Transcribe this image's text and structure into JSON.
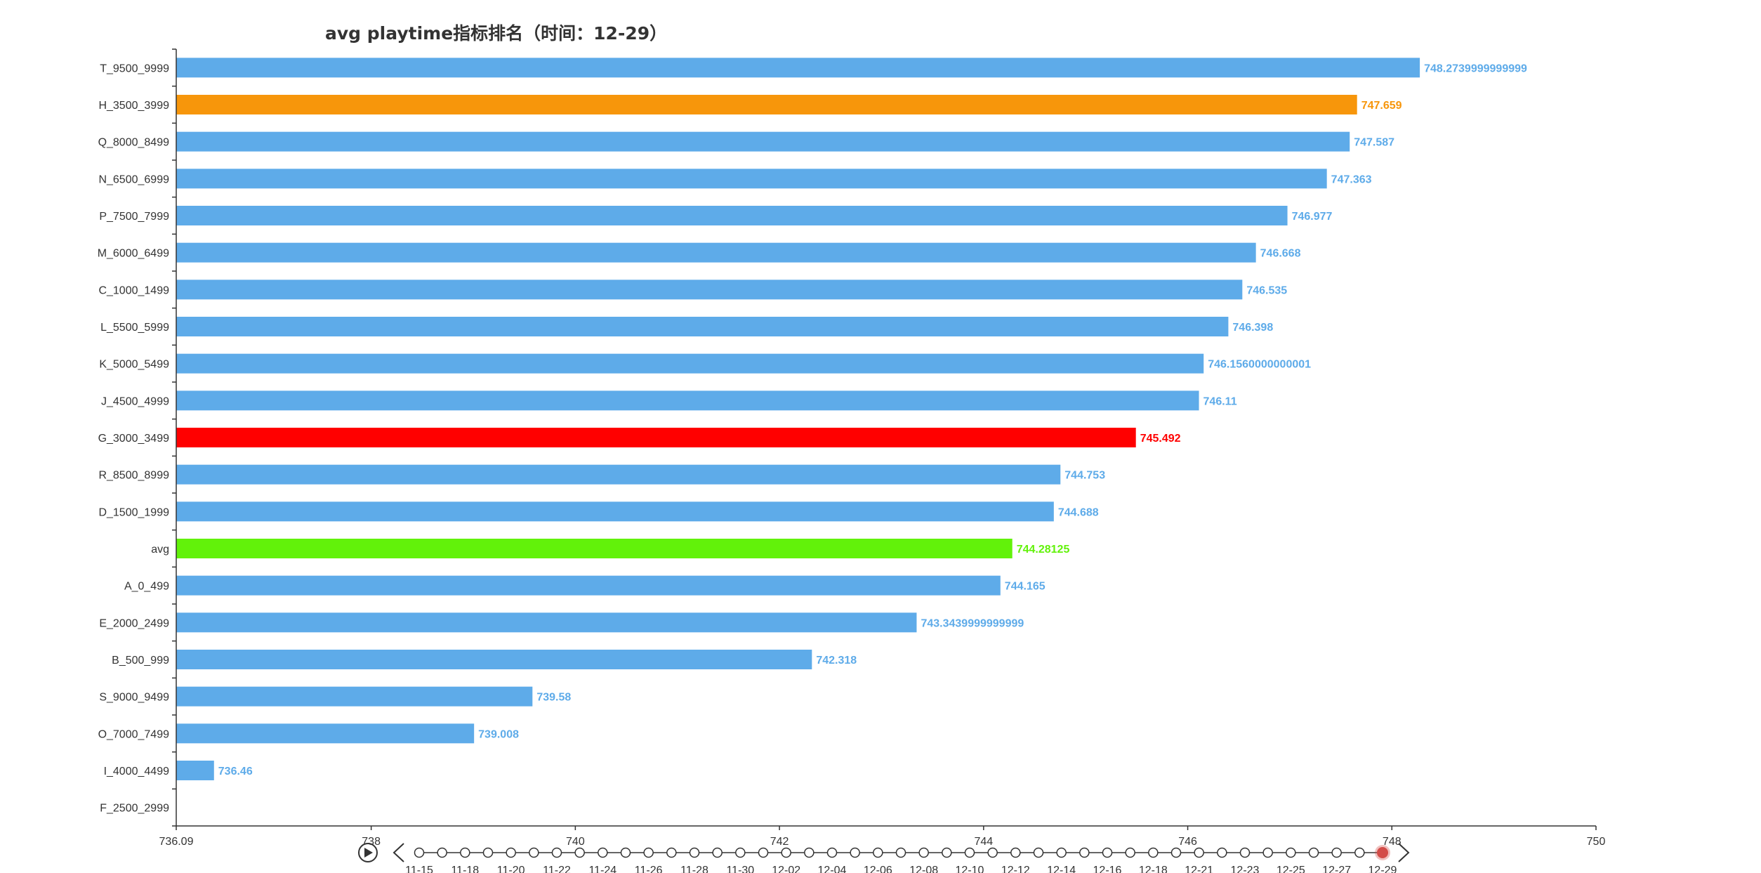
{
  "chart_data": {
    "type": "bar",
    "orientation": "horizontal",
    "title": "avg playtime指标排名（时间：12-29）",
    "categories": [
      "T_9500_9999",
      "H_3500_3999",
      "Q_8000_8499",
      "N_6500_6999",
      "P_7500_7999",
      "M_6000_6499",
      "C_1000_1499",
      "L_5500_5999",
      "K_5000_5499",
      "J_4500_4999",
      "G_3000_3499",
      "R_8500_8999",
      "D_1500_1999",
      "avg",
      "A_0_499",
      "E_2000_2499",
      "B_500_999",
      "S_9000_9499",
      "O_7000_7499",
      "I_4000_4499",
      "F_2500_2999"
    ],
    "values": [
      748.2739999999999,
      747.659,
      747.587,
      747.363,
      746.977,
      746.668,
      746.535,
      746.398,
      746.1560000000001,
      746.11,
      745.492,
      744.753,
      744.688,
      744.28125,
      744.165,
      743.3439999999999,
      742.318,
      739.58,
      739.008,
      736.46,
      null
    ],
    "value_labels": [
      "748.2739999999999",
      "747.659",
      "747.587",
      "747.363",
      "746.977",
      "746.668",
      "746.535",
      "746.398",
      "746.1560000000001",
      "746.11",
      "745.492",
      "744.753",
      "744.688",
      "744.28125",
      "744.165",
      "743.3439999999999",
      "742.318",
      "739.58",
      "739.008",
      "736.46",
      ""
    ],
    "colors": [
      "#5eabe9",
      "#f7960b",
      "#5eabe9",
      "#5eabe9",
      "#5eabe9",
      "#5eabe9",
      "#5eabe9",
      "#5eabe9",
      "#5eabe9",
      "#5eabe9",
      "#ff0000",
      "#5eabe9",
      "#5eabe9",
      "#62f20a",
      "#5eabe9",
      "#5eabe9",
      "#5eabe9",
      "#5eabe9",
      "#5eabe9",
      "#5eabe9",
      "#5eabe9"
    ],
    "xlim": [
      736.09,
      750
    ],
    "x_ticks": [
      736.09,
      738,
      740,
      742,
      744,
      746,
      748,
      750
    ],
    "x_tick_labels": [
      "736.09",
      "738",
      "740",
      "742",
      "744",
      "746",
      "748",
      "750"
    ],
    "grid": false,
    "default_color": "#5eabe9"
  },
  "timeline": {
    "labels": [
      "11-15",
      "11-18",
      "11-20",
      "11-22",
      "11-24",
      "11-26",
      "11-28",
      "11-30",
      "12-02",
      "12-04",
      "12-06",
      "12-08",
      "12-10",
      "12-12",
      "12-14",
      "12-16",
      "12-18",
      "12-21",
      "12-23",
      "12-25",
      "12-27",
      "12-29"
    ],
    "node_count": 43,
    "current": "12-29",
    "play_icon": "play-circle-icon",
    "prev_icon": "chevron-left-icon",
    "next_icon": "chevron-right-icon",
    "accent": "#d34c48"
  }
}
